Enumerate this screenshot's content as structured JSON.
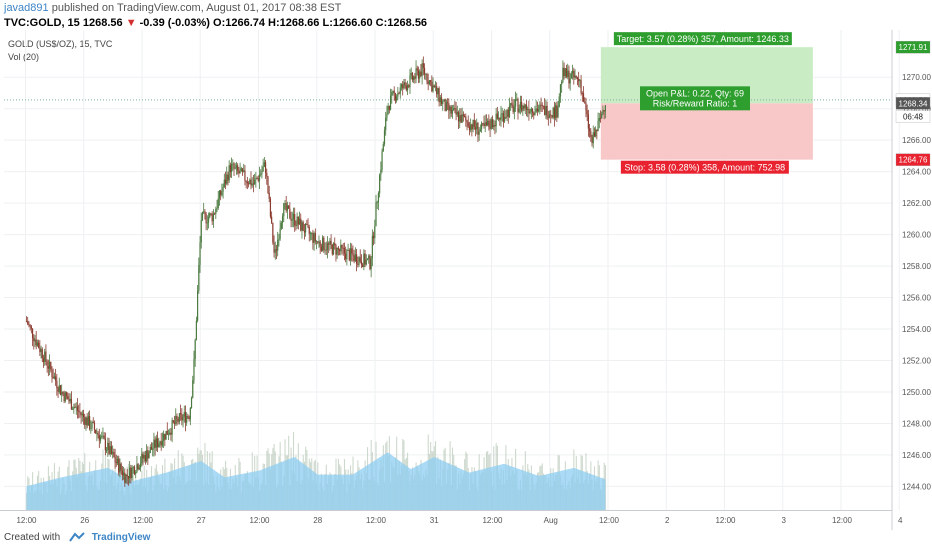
{
  "header": {
    "author": "javad891",
    "published": "published on TradingView.com, August 01, 2017 08:38 EST",
    "symbol": "TVC:GOLD, 15",
    "last": "1268.56",
    "change_arrow": "▼",
    "change": "-0.39 (-0.03%)",
    "ohlc": "O:1266.74 H:1268.66 L:1266.60 C:1268.56"
  },
  "legend": {
    "title": "GOLD (US$/OZ), 15, TVC",
    "volume": "Vol (20)"
  },
  "footer": {
    "created_with": "Created with",
    "brand": "TradingView"
  },
  "colors": {
    "bull": "#4a7a3f",
    "bear": "#8b3a2e",
    "volume": "#b9c9b9",
    "volume_ma": "#8ecdf2",
    "target_zone": "#c9ecc4",
    "stop_zone": "#f8c8c8",
    "target_label": "#2e9e2e",
    "stop_label": "#e8222f",
    "grid": "#eef0f2",
    "axis_text": "#555555"
  },
  "chart_data": {
    "type": "candlestick",
    "y_axis": {
      "ylim": [
        1242.5,
        1273.0
      ],
      "ticks": [
        1244,
        1246,
        1248,
        1250,
        1252,
        1254,
        1256,
        1258,
        1260,
        1262,
        1264,
        1266,
        1268,
        1270
      ],
      "tick_labels": [
        "1244.00",
        "1246.00",
        "1248.00",
        "1250.00",
        "1252.00",
        "1254.00",
        "1256.00",
        "1258.00",
        "1260.00",
        "1262.00",
        "1264.00",
        "1266.00",
        "1268.00",
        "1270.00"
      ]
    },
    "x_axis": {
      "tick_labels": [
        "12:00",
        "26",
        "12:00",
        "27",
        "12:00",
        "28",
        "12:00",
        "31",
        "12:00",
        "Aug",
        "12:00",
        "2",
        "12:00",
        "3",
        "12:00",
        "4"
      ]
    },
    "grid": true,
    "price_path": [
      [
        0,
        1254.5
      ],
      [
        0.3,
        1250.0
      ],
      [
        0.62,
        1247.3
      ],
      [
        0.85,
        1244.6
      ],
      [
        1.3,
        1248.2
      ],
      [
        1.4,
        1248.6
      ],
      [
        1.44,
        1252.0
      ],
      [
        1.5,
        1261.0
      ],
      [
        1.6,
        1261.2
      ],
      [
        1.75,
        1264.3
      ],
      [
        1.95,
        1263.2
      ],
      [
        2.05,
        1264.4
      ],
      [
        2.13,
        1258.5
      ],
      [
        2.2,
        1261.7
      ],
      [
        2.5,
        1259.5
      ],
      [
        2.95,
        1258.2
      ],
      [
        3.02,
        1263.0
      ],
      [
        3.1,
        1268.2
      ],
      [
        3.15,
        1268.8
      ],
      [
        3.4,
        1270.5
      ],
      [
        3.6,
        1268.0
      ],
      [
        3.9,
        1266.6
      ],
      [
        4.2,
        1268.2
      ],
      [
        4.55,
        1267.8
      ],
      [
        4.6,
        1270.2
      ],
      [
        4.75,
        1269.8
      ],
      [
        4.85,
        1265.8
      ],
      [
        4.92,
        1267.2
      ],
      [
        4.97,
        1268.56
      ]
    ],
    "volume_profile": [
      [
        0,
        0.35
      ],
      [
        0.3,
        0.48
      ],
      [
        0.7,
        0.62
      ],
      [
        0.9,
        0.42
      ],
      [
        1.2,
        0.55
      ],
      [
        1.5,
        0.72
      ],
      [
        1.7,
        0.48
      ],
      [
        2.0,
        0.58
      ],
      [
        2.3,
        0.78
      ],
      [
        2.5,
        0.52
      ],
      [
        2.8,
        0.52
      ],
      [
        3.1,
        0.85
      ],
      [
        3.3,
        0.6
      ],
      [
        3.5,
        0.78
      ],
      [
        3.8,
        0.55
      ],
      [
        4.1,
        0.68
      ],
      [
        4.4,
        0.5
      ],
      [
        4.7,
        0.62
      ],
      [
        4.97,
        0.45
      ]
    ],
    "position": {
      "entry": 1268.34,
      "target": 1271.91,
      "stop": 1264.76,
      "target_label": "Target: 3.57 (0.28%) 357, Amount: 1246.33",
      "stop_label": "Stop: 3.58 (0.28%) 358, Amount: 752.98",
      "open_pnl_label": "Open P&L: 0.22, Qty: 69",
      "risk_reward_label": "Risk/Reward Ratio: 1"
    },
    "price_labels": {
      "target": "1271.91",
      "last": "1268.56",
      "countdown": "06:48",
      "entry": "1268.34",
      "stop": "1264.76"
    }
  }
}
